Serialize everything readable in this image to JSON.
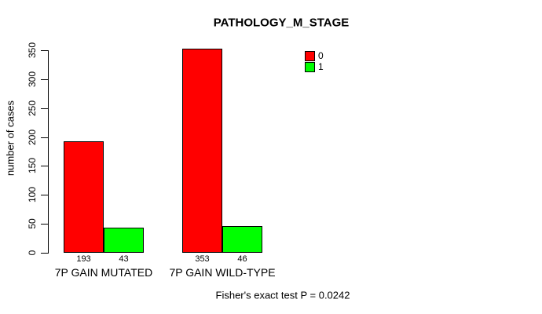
{
  "title": "PATHOLOGY_M_STAGE",
  "footer": "Fisher's exact test P = 0.0242",
  "colors": {
    "series0": "#FF0000",
    "series1": "#00FF00",
    "axis": "#000000",
    "background": "#FFFFFF"
  },
  "chart_data": {
    "type": "bar",
    "title": "PATHOLOGY_M_STAGE",
    "categories": [
      "7P GAIN MUTATED",
      "7P GAIN WILD-TYPE"
    ],
    "series": [
      {
        "name": "0",
        "color": "#FF0000",
        "values": [
          193,
          353
        ]
      },
      {
        "name": "1",
        "color": "#00FF00",
        "values": [
          43,
          46
        ]
      }
    ],
    "value_labels": [
      [
        "193",
        "43"
      ],
      [
        "353",
        "46"
      ]
    ],
    "xlabel": "",
    "ylabel": "number of cases",
    "ylim": [
      0,
      350
    ],
    "yticks": [
      0,
      50,
      100,
      150,
      200,
      250,
      300,
      350
    ],
    "grid": false,
    "legend_position": "top-right",
    "legend_entries": [
      "0",
      "1"
    ],
    "annotation": "Fisher's exact test P = 0.0242"
  }
}
